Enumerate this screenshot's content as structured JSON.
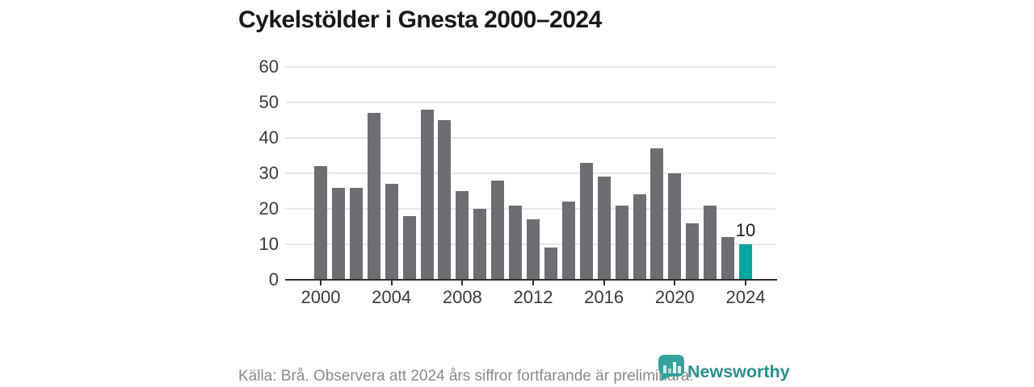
{
  "title": "Cykelstölder i Gnesta 2000–2024",
  "chart_data": {
    "type": "bar",
    "title": "Cykelstölder i Gnesta 2000–2024",
    "x": [
      2000,
      2001,
      2002,
      2003,
      2004,
      2005,
      2006,
      2007,
      2008,
      2009,
      2010,
      2011,
      2012,
      2013,
      2014,
      2015,
      2016,
      2017,
      2018,
      2019,
      2020,
      2021,
      2022,
      2023,
      2024
    ],
    "values": [
      32,
      26,
      26,
      47,
      27,
      18,
      48,
      45,
      25,
      20,
      28,
      21,
      17,
      9,
      22,
      33,
      29,
      21,
      24,
      37,
      30,
      16,
      21,
      12,
      10
    ],
    "xlabel": "",
    "ylabel": "",
    "ylim": [
      0,
      60
    ],
    "yticks": [
      0,
      10,
      20,
      30,
      40,
      50,
      60
    ],
    "xticks": [
      2000,
      2004,
      2008,
      2012,
      2016,
      2020,
      2024
    ],
    "grid": "horizontal",
    "legend": "none",
    "bar_color": "#6e6e72",
    "highlight_x": 2024,
    "highlight_color": "#00a79c",
    "highlight_value_label": "10"
  },
  "footer": {
    "source_note": "Källa: Brå. Observera att 2024 års siffror fortfarande är preliminära."
  },
  "branding": {
    "logo_text": "Newsworthy",
    "logo_icon": "bar-chart-speech-bubble-icon",
    "logo_text_color": "#2a8f89",
    "logo_icon_color": "#35a39b"
  }
}
